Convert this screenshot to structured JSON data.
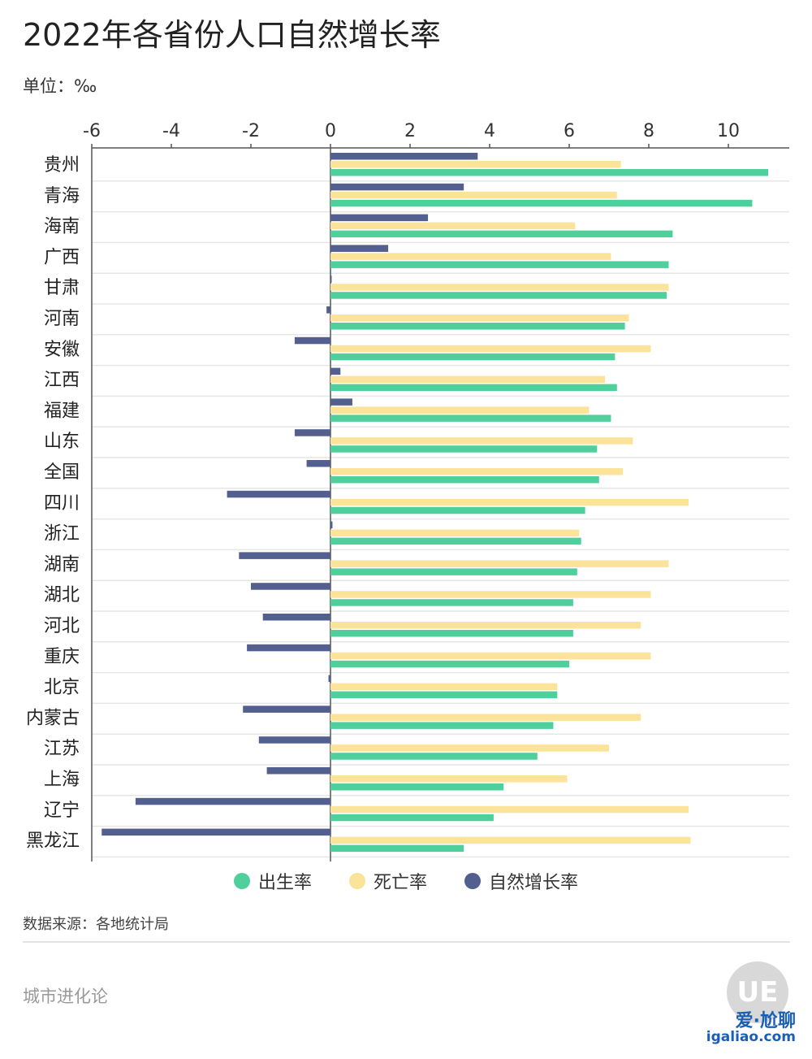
{
  "title": "2022年各省份人口自然增长率",
  "unit": "单位：‰",
  "legend": [
    {
      "label": "出生率",
      "color": "#4fcf9b"
    },
    {
      "label": "死亡率",
      "color": "#fbe39a"
    },
    {
      "label": "自然增长率",
      "color": "#525f8f"
    }
  ],
  "source": "数据来源：各地统计局",
  "footer_brand": "城市进化论",
  "logo_text": "UE",
  "site": {
    "name": "爱·尬聊",
    "url": "igaliao.com"
  },
  "chart_data": {
    "type": "bar",
    "orientation": "horizontal",
    "xlim": [
      -6,
      11.5
    ],
    "x_ticks": [
      "-6",
      "-4",
      "-2",
      "0",
      "2",
      "4",
      "6",
      "8",
      "10"
    ],
    "categories": [
      "贵州",
      "青海",
      "海南",
      "广西",
      "甘肃",
      "河南",
      "安徽",
      "江西",
      "福建",
      "山东",
      "全国",
      "四川",
      "浙江",
      "湖南",
      "湖北",
      "河北",
      "重庆",
      "北京",
      "内蒙古",
      "江苏",
      "上海",
      "辽宁",
      "黑龙江"
    ],
    "series": [
      {
        "name": "自然增长率",
        "color": "#525f8f",
        "values": [
          3.7,
          3.35,
          2.45,
          1.45,
          0.03,
          -0.1,
          -0.9,
          0.25,
          0.55,
          -0.9,
          -0.6,
          -2.6,
          0.05,
          -2.3,
          -2.0,
          -1.7,
          -2.1,
          -0.05,
          -2.2,
          -1.8,
          -1.6,
          -4.9,
          -5.75
        ]
      },
      {
        "name": "死亡率",
        "color": "#fbe39a",
        "values": [
          7.3,
          7.2,
          6.15,
          7.05,
          8.5,
          7.5,
          8.05,
          6.9,
          6.5,
          7.6,
          7.35,
          9.0,
          6.25,
          8.5,
          8.05,
          7.8,
          8.05,
          5.7,
          7.8,
          7.0,
          5.95,
          9.0,
          9.05
        ]
      },
      {
        "name": "出生率",
        "color": "#4fcf9b",
        "values": [
          11.0,
          10.6,
          8.6,
          8.5,
          8.45,
          7.4,
          7.15,
          7.2,
          7.05,
          6.7,
          6.75,
          6.4,
          6.3,
          6.2,
          6.1,
          6.1,
          6.0,
          5.7,
          5.6,
          5.2,
          4.35,
          4.1,
          3.35
        ]
      }
    ]
  }
}
